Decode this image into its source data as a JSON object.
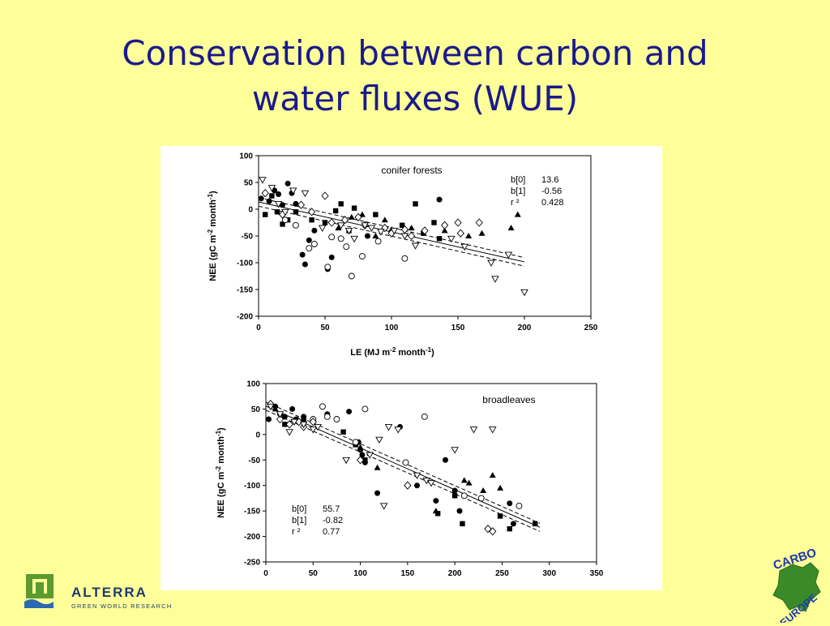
{
  "slide": {
    "title_line1": "Conservation between carbon and",
    "title_line2": "water fluxes (WUE)"
  },
  "logos": {
    "left_name": "ALTERRA",
    "left_tagline": "GREEN WORLD RESEARCH",
    "right_top": "CARBO",
    "right_bottom": "EUROPE"
  },
  "chart_data": [
    {
      "type": "scatter",
      "title": "conifer forests",
      "xlabel": "LE (MJ m-2 month-1)",
      "ylabel": "NEE (gC m-2 month-1)",
      "xlim": [
        0,
        250
      ],
      "ylim": [
        -200,
        100
      ],
      "xticks": [
        0,
        50,
        100,
        150,
        200,
        250
      ],
      "yticks": [
        100,
        50,
        0,
        -50,
        -100,
        -150,
        -200
      ],
      "stats": [
        {
          "label": "b[0]",
          "value": "13.6"
        },
        {
          "label": "b[1]",
          "value": "-0.56"
        },
        {
          "label": "r ²",
          "value": "0.428"
        }
      ],
      "regression": {
        "intercept": 13.6,
        "slope": -0.56,
        "x_range": [
          0,
          200
        ]
      },
      "series": [
        {
          "marker": "filled-circle",
          "points": [
            [
              2,
              20
            ],
            [
              8,
              15
            ],
            [
              12,
              35
            ],
            [
              15,
              28
            ],
            [
              18,
              8
            ],
            [
              22,
              48
            ],
            [
              25,
              30
            ],
            [
              28,
              10
            ],
            [
              33,
              -85
            ],
            [
              35,
              -103
            ],
            [
              38,
              -58
            ],
            [
              42,
              -40
            ],
            [
              52,
              -112
            ],
            [
              55,
              -90
            ],
            [
              82,
              -50
            ],
            [
              136,
              18
            ],
            [
              140,
              -30
            ]
          ]
        },
        {
          "marker": "filled-square",
          "points": [
            [
              5,
              -10
            ],
            [
              10,
              25
            ],
            [
              14,
              -5
            ],
            [
              18,
              -28
            ],
            [
              22,
              -20
            ],
            [
              28,
              -5
            ],
            [
              40,
              -20
            ],
            [
              50,
              -25
            ],
            [
              58,
              -3
            ],
            [
              62,
              10
            ],
            [
              68,
              -40
            ],
            [
              72,
              2
            ],
            [
              88,
              -10
            ],
            [
              108,
              -30
            ],
            [
              118,
              10
            ],
            [
              124,
              -45
            ],
            [
              132,
              -25
            ],
            [
              136,
              -55
            ]
          ]
        },
        {
          "marker": "filled-triangle",
          "points": [
            [
              60,
              -35
            ],
            [
              70,
              -15
            ],
            [
              78,
              -10
            ],
            [
              88,
              -50
            ],
            [
              95,
              -20
            ],
            [
              100,
              -38
            ],
            [
              115,
              -35
            ],
            [
              140,
              -40
            ],
            [
              158,
              -50
            ],
            [
              168,
              -45
            ],
            [
              190,
              -35
            ],
            [
              195,
              -10
            ]
          ]
        },
        {
          "marker": "open-circle",
          "points": [
            [
              20,
              -20
            ],
            [
              28,
              -30
            ],
            [
              38,
              -73
            ],
            [
              42,
              -65
            ],
            [
              52,
              -108
            ],
            [
              55,
              -52
            ],
            [
              62,
              -55
            ],
            [
              66,
              -70
            ],
            [
              70,
              -125
            ],
            [
              78,
              -88
            ],
            [
              90,
              -60
            ],
            [
              110,
              -92
            ]
          ]
        },
        {
          "marker": "open-diamond",
          "points": [
            [
              5,
              30
            ],
            [
              18,
              -10
            ],
            [
              32,
              8
            ],
            [
              40,
              -5
            ],
            [
              50,
              25
            ],
            [
              55,
              -25
            ],
            [
              65,
              -20
            ],
            [
              75,
              -15
            ],
            [
              80,
              -30
            ],
            [
              95,
              -35
            ],
            [
              100,
              -45
            ],
            [
              110,
              -38
            ],
            [
              115,
              -50
            ],
            [
              125,
              -40
            ],
            [
              140,
              -30
            ],
            [
              150,
              -25
            ],
            [
              152,
              -45
            ],
            [
              166,
              -25
            ]
          ]
        },
        {
          "marker": "open-triangle-down",
          "points": [
            [
              3,
              55
            ],
            [
              10,
              40
            ],
            [
              15,
              10
            ],
            [
              20,
              -5
            ],
            [
              26,
              35
            ],
            [
              35,
              30
            ],
            [
              48,
              -35
            ],
            [
              62,
              -30
            ],
            [
              68,
              -40
            ],
            [
              72,
              -55
            ],
            [
              80,
              -30
            ],
            [
              85,
              -35
            ],
            [
              92,
              -42
            ],
            [
              102,
              -40
            ],
            [
              110,
              -50
            ],
            [
              118,
              -68
            ],
            [
              145,
              -55
            ],
            [
              155,
              -70
            ],
            [
              175,
              -100
            ],
            [
              178,
              -130
            ],
            [
              188,
              -85
            ],
            [
              200,
              -155
            ]
          ]
        }
      ]
    },
    {
      "type": "scatter",
      "title": "broadleaves",
      "xlabel": "",
      "ylabel": "NEE (gC m-2 month-1)",
      "xlim": [
        0,
        350
      ],
      "ylim": [
        -250,
        100
      ],
      "xticks": [
        0,
        50,
        100,
        150,
        200,
        250,
        300,
        350
      ],
      "yticks": [
        100,
        50,
        0,
        -50,
        -100,
        -150,
        -200,
        -250
      ],
      "stats": [
        {
          "label": "b[0]",
          "value": "55.7"
        },
        {
          "label": "b[1]",
          "value": "-0.82"
        },
        {
          "label": "r ²",
          "value": "0.77"
        }
      ],
      "regression": {
        "intercept": 55.7,
        "slope": -0.82,
        "x_range": [
          0,
          290
        ]
      },
      "series": [
        {
          "marker": "filled-circle",
          "points": [
            [
              3,
              30
            ],
            [
              10,
              55
            ],
            [
              15,
              40
            ],
            [
              20,
              35
            ],
            [
              28,
              50
            ],
            [
              32,
              30
            ],
            [
              40,
              35
            ],
            [
              65,
              40
            ],
            [
              88,
              45
            ],
            [
              98,
              -15
            ],
            [
              100,
              -30
            ],
            [
              102,
              -40
            ],
            [
              105,
              -55
            ],
            [
              118,
              -115
            ],
            [
              142,
              15
            ],
            [
              160,
              -100
            ],
            [
              180,
              -130
            ],
            [
              190,
              -50
            ],
            [
              200,
              -110
            ],
            [
              205,
              -150
            ],
            [
              258,
              -135
            ],
            [
              262,
              -175
            ]
          ]
        },
        {
          "marker": "filled-square",
          "points": [
            [
              20,
              20
            ],
            [
              40,
              30
            ],
            [
              82,
              5
            ],
            [
              95,
              -20
            ],
            [
              105,
              -50
            ],
            [
              182,
              -155
            ],
            [
              200,
              -120
            ],
            [
              208,
              -175
            ],
            [
              248,
              -160
            ],
            [
              258,
              -185
            ],
            [
              285,
              -175
            ]
          ]
        },
        {
          "marker": "filled-triangle",
          "points": [
            [
              10,
              50
            ],
            [
              100,
              -25
            ],
            [
              118,
              -65
            ],
            [
              180,
              -150
            ],
            [
              210,
              -90
            ],
            [
              215,
              -95
            ],
            [
              230,
              -110
            ],
            [
              240,
              -80
            ],
            [
              248,
              -105
            ]
          ]
        },
        {
          "marker": "open-circle",
          "points": [
            [
              50,
              30
            ],
            [
              60,
              55
            ],
            [
              65,
              35
            ],
            [
              75,
              30
            ],
            [
              95,
              -15
            ],
            [
              105,
              50
            ],
            [
              148,
              -55
            ],
            [
              168,
              35
            ],
            [
              210,
              -120
            ],
            [
              228,
              -125
            ],
            [
              268,
              -140
            ]
          ]
        },
        {
          "marker": "open-diamond",
          "points": [
            [
              5,
              60
            ],
            [
              15,
              30
            ],
            [
              25,
              20
            ],
            [
              35,
              25
            ],
            [
              40,
              15
            ],
            [
              50,
              25
            ],
            [
              100,
              -50
            ],
            [
              150,
              -100
            ],
            [
              235,
              -185
            ],
            [
              240,
              -190
            ]
          ]
        },
        {
          "marker": "open-triangle-down",
          "points": [
            [
              5,
              55
            ],
            [
              15,
              40
            ],
            [
              25,
              5
            ],
            [
              30,
              25
            ],
            [
              40,
              20
            ],
            [
              50,
              10
            ],
            [
              55,
              15
            ],
            [
              85,
              -50
            ],
            [
              110,
              -40
            ],
            [
              120,
              -10
            ],
            [
              130,
              15
            ],
            [
              140,
              10
            ],
            [
              160,
              -80
            ],
            [
              170,
              -90
            ],
            [
              175,
              -95
            ],
            [
              200,
              -30
            ],
            [
              220,
              10
            ],
            [
              240,
              10
            ],
            [
              125,
              -140
            ]
          ]
        }
      ]
    }
  ]
}
